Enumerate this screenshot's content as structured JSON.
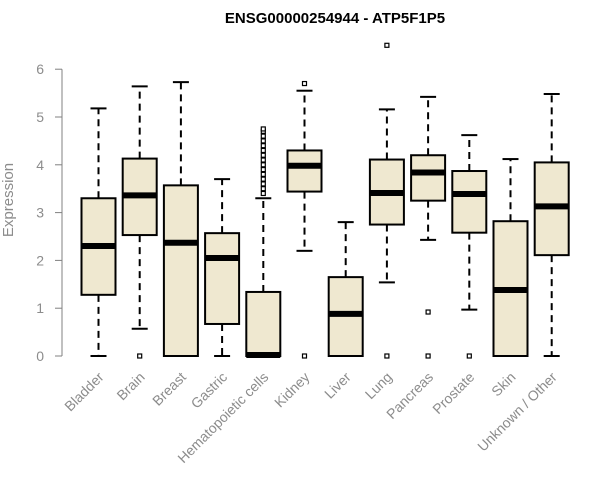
{
  "chart_data": {
    "type": "boxplot",
    "title": "ENSG00000254944 - ATP5F1P5",
    "xlabel": "",
    "ylabel": "Expression",
    "ylim": [
      0,
      6.6
    ],
    "yticks": [
      0,
      1,
      2,
      3,
      4,
      5,
      6
    ],
    "grid": false,
    "colors": {
      "box_fill": "#efe8d0",
      "stroke": "#000000",
      "axis": "#808080"
    },
    "categories": [
      "Bladder",
      "Brain",
      "Breast",
      "Gastric",
      "Hematopoietic cells",
      "Kidney",
      "Liver",
      "Lung",
      "Pancreas",
      "Prostate",
      "Skin",
      "Unknown / Other"
    ],
    "boxes": [
      {
        "q1": 1.28,
        "median": 2.3,
        "q3": 3.3,
        "whisker_low": 0.0,
        "whisker_high": 5.18,
        "outliers": []
      },
      {
        "q1": 2.53,
        "median": 3.36,
        "q3": 4.13,
        "whisker_low": 0.57,
        "whisker_high": 5.64,
        "outliers": [
          0.0
        ]
      },
      {
        "q1": 0.0,
        "median": 2.37,
        "q3": 3.57,
        "whisker_low": 0.0,
        "whisker_high": 5.73,
        "outliers": []
      },
      {
        "q1": 0.67,
        "median": 2.05,
        "q3": 2.57,
        "whisker_low": 0.0,
        "whisker_high": 3.7,
        "outliers": []
      },
      {
        "q1": 0.0,
        "median": 0.02,
        "q3": 1.34,
        "whisker_low": 0.0,
        "whisker_high": 3.3,
        "outliers": [
          3.4,
          3.5,
          3.6,
          3.7,
          3.8,
          3.9,
          4.0,
          4.1,
          4.2,
          4.3,
          4.4,
          4.5,
          4.6,
          4.7,
          4.75
        ]
      },
      {
        "q1": 3.44,
        "median": 3.98,
        "q3": 4.3,
        "whisker_low": 2.2,
        "whisker_high": 5.55,
        "outliers": [
          0.0,
          5.7
        ]
      },
      {
        "q1": 0.0,
        "median": 0.88,
        "q3": 1.65,
        "whisker_low": 0.0,
        "whisker_high": 2.8,
        "outliers": []
      },
      {
        "q1": 2.75,
        "median": 3.41,
        "q3": 4.11,
        "whisker_low": 1.54,
        "whisker_high": 5.16,
        "outliers": [
          0.0,
          6.5
        ]
      },
      {
        "q1": 3.25,
        "median": 3.84,
        "q3": 4.2,
        "whisker_low": 2.43,
        "whisker_high": 5.42,
        "outliers": [
          0.92,
          0.0
        ]
      },
      {
        "q1": 2.58,
        "median": 3.39,
        "q3": 3.87,
        "whisker_low": 0.97,
        "whisker_high": 4.62,
        "outliers": [
          0.0
        ]
      },
      {
        "q1": 0.0,
        "median": 1.38,
        "q3": 2.82,
        "whisker_low": 0.0,
        "whisker_high": 4.12,
        "outliers": []
      },
      {
        "q1": 2.11,
        "median": 3.13,
        "q3": 4.05,
        "whisker_low": 0.0,
        "whisker_high": 5.48,
        "outliers": []
      }
    ]
  }
}
